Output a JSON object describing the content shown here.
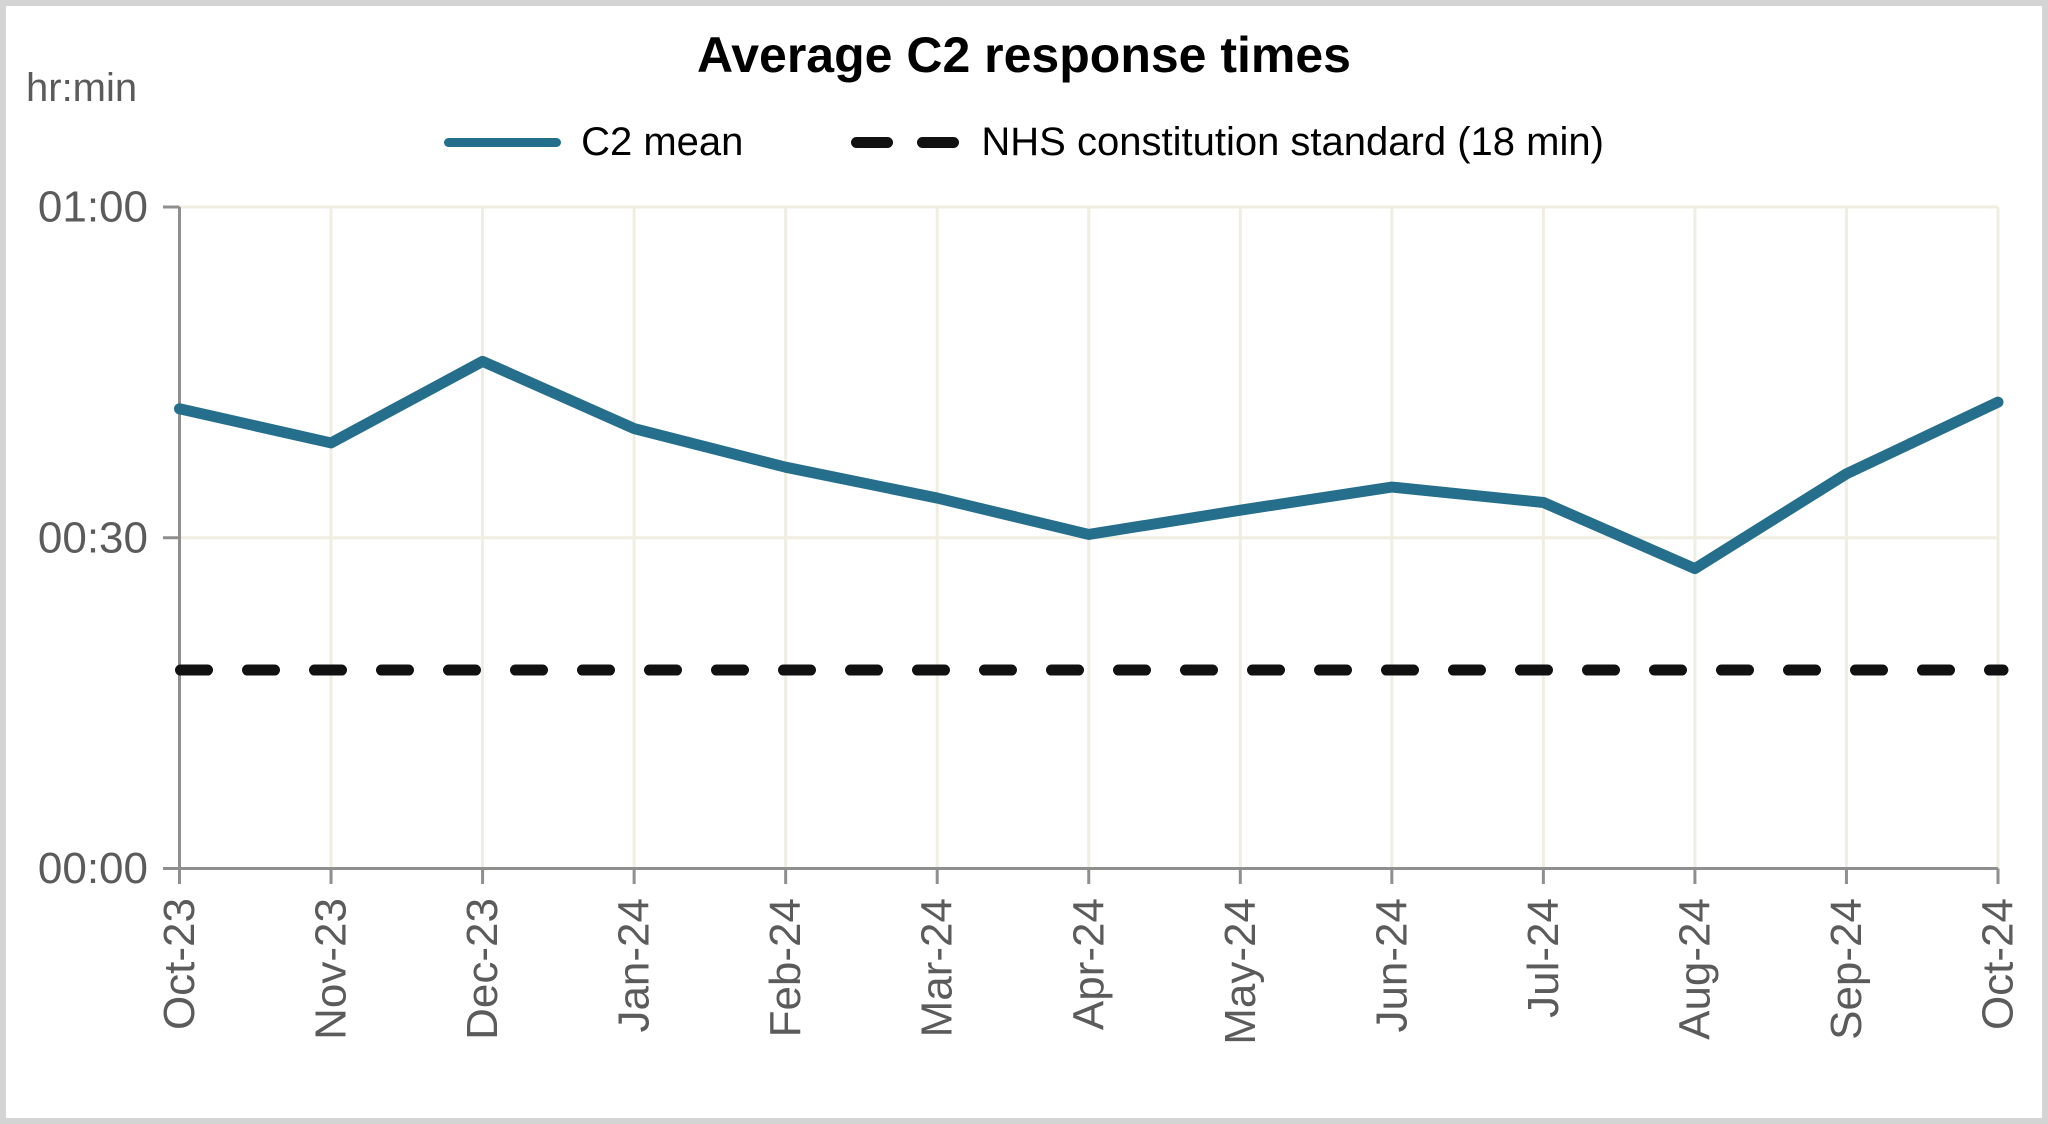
{
  "title": "Average C2 response times",
  "y_axis_unit_label": "hr:min",
  "legend": [
    {
      "label": "C2 mean",
      "type": "solid",
      "color": "#256F8D"
    },
    {
      "label": "NHS constitution standard (18 min)",
      "type": "dashed",
      "color": "#111111"
    }
  ],
  "y_axis": {
    "tick_labels": [
      "01:00",
      "00:30",
      "00:00"
    ],
    "tick_minutes": [
      60,
      30,
      0
    ],
    "max_minutes": 60
  },
  "x_axis": {
    "categories": [
      "Oct-23",
      "Nov-23",
      "Dec-23",
      "Jan-24",
      "Feb-24",
      "Mar-24",
      "Apr-24",
      "May-24",
      "Jun-24",
      "Jul-24",
      "Aug-24",
      "Sep-24",
      "Oct-24"
    ]
  },
  "chart_data": {
    "type": "line",
    "title": "Average C2 response times",
    "ylabel": "hr:min",
    "ylim_minutes": [
      0,
      60
    ],
    "y_tick_interval_minutes": 30,
    "y_tick_format": "hh:mm",
    "grid": true,
    "legend_position": "top",
    "categories": [
      "Oct-23",
      "Nov-23",
      "Dec-23",
      "Jan-24",
      "Feb-24",
      "Mar-24",
      "Apr-24",
      "May-24",
      "Jun-24",
      "Jul-24",
      "Aug-24",
      "Sep-24",
      "Oct-24"
    ],
    "series": [
      {
        "name": "C2 mean",
        "style": "solid",
        "color": "#256F8D",
        "values_minutes": [
          41.7,
          38.6,
          46.0,
          39.9,
          36.4,
          33.6,
          30.3,
          32.5,
          34.6,
          33.2,
          27.2,
          35.8,
          42.3
        ]
      },
      {
        "name": "NHS constitution standard (18 min)",
        "style": "dashed",
        "color": "#111111",
        "constant_minutes": 18
      }
    ]
  },
  "colors": {
    "series_line": "#256F8D",
    "standard_line": "#111111",
    "gridline": "#F0EDE1",
    "axis": "#8f8f8f",
    "tick_label": "#5b5b5b",
    "title_text": "#000000",
    "frame_border": "#d4d4d4",
    "background": "#ffffff"
  }
}
